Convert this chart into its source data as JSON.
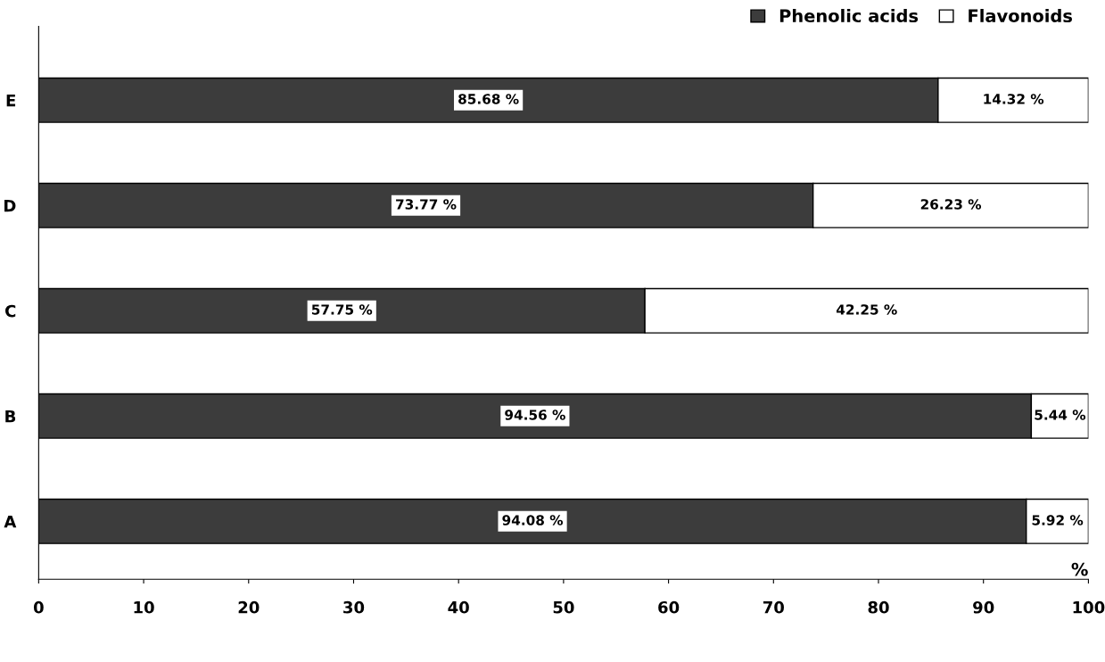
{
  "chart_data": {
    "type": "bar",
    "orientation": "horizontal",
    "stacked": true,
    "categories": [
      "E",
      "D",
      "C",
      "B",
      "A"
    ],
    "series": [
      {
        "name": "Phenolic acids",
        "color": "#3c3c3c",
        "values": [
          85.68,
          73.77,
          57.75,
          94.56,
          94.08
        ],
        "value_labels": [
          "85.68 %",
          "73.77 %",
          "57.75 %",
          "94.56 %",
          "94.08 %"
        ]
      },
      {
        "name": "Flavonoids",
        "color": "#ffffff",
        "values": [
          14.32,
          26.23,
          42.25,
          5.44,
          5.92
        ],
        "value_labels": [
          "14.32 %",
          "26.23 %",
          "42.25 %",
          "5.44 %",
          "5.92 %"
        ]
      }
    ],
    "xlabel": "%",
    "xlim": [
      0,
      100
    ],
    "xticks": [
      0,
      10,
      20,
      30,
      40,
      50,
      60,
      70,
      80,
      90,
      100
    ],
    "legend": "top right",
    "grid": false
  }
}
